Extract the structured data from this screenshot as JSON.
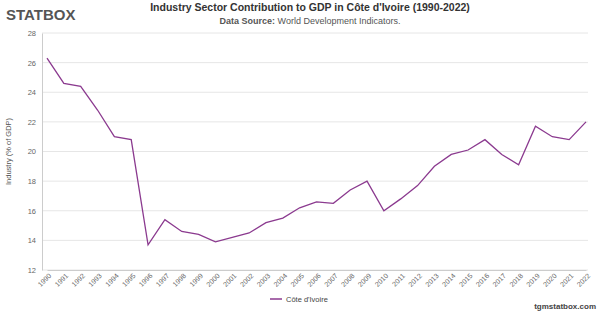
{
  "chart_data": {
    "type": "line",
    "title": "Industry Sector Contribution to GDP in Côte d'Ivoire (1990-2022)",
    "subtitle": "Data Source: World Development Indicators.",
    "y_label": "Industry (% of GDP)",
    "annotations": [
      "STATBOX",
      "tgmstatbox.com"
    ],
    "categories": [
      "1990",
      "1991",
      "1992",
      "1993",
      "1994",
      "1995",
      "1996",
      "1997",
      "1998",
      "1999",
      "2000",
      "2001",
      "2002",
      "2003",
      "2004",
      "2005",
      "2006",
      "2007",
      "2008",
      "2009",
      "2010",
      "2011",
      "2012",
      "2013",
      "2014",
      "2015",
      "2016",
      "2017",
      "2018",
      "2019",
      "2020",
      "2021",
      "2022"
    ],
    "series": [
      {
        "name": "Côte d'Ivoire",
        "color": "#8b3a8f",
        "values": [
          26.3,
          24.6,
          24.4,
          22.8,
          21.0,
          20.8,
          13.7,
          15.4,
          14.6,
          14.4,
          13.9,
          14.2,
          14.5,
          15.2,
          15.5,
          16.2,
          16.6,
          16.5,
          17.4,
          18.0,
          16.0,
          16.8,
          17.7,
          19.0,
          19.8,
          20.1,
          20.8,
          19.8,
          19.1,
          21.7,
          21.0,
          20.8,
          22.0
        ]
      }
    ],
    "ylim": [
      12,
      28
    ],
    "yticks": [
      12,
      14,
      16,
      18,
      20,
      22,
      24,
      26,
      28
    ],
    "grid": true,
    "legend": "bottom"
  }
}
